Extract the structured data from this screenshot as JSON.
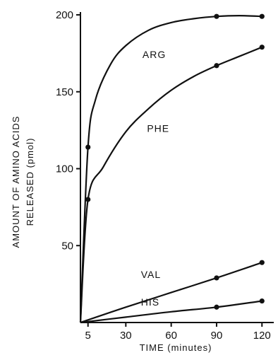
{
  "chart_data": {
    "type": "line",
    "xlabel": "TIME (minutes)",
    "ylabel_line1": "AMOUNT OF AMINO ACIDS",
    "ylabel_line2": "RELEASED (pmol)",
    "xlim": [
      0,
      125
    ],
    "ylim": [
      0,
      200
    ],
    "x_ticks": [
      5,
      30,
      60,
      90,
      120
    ],
    "y_ticks": [
      50,
      100,
      150,
      200
    ],
    "grid": false,
    "series": [
      {
        "name": "ARG",
        "points": [
          [
            0,
            0
          ],
          [
            5,
            114
          ],
          [
            90,
            199
          ],
          [
            120,
            199
          ]
        ],
        "curve": [
          [
            0,
            0
          ],
          [
            5,
            114
          ],
          [
            10,
            145
          ],
          [
            20,
            168
          ],
          [
            30,
            180
          ],
          [
            45,
            190
          ],
          [
            60,
            195
          ],
          [
            75,
            197.5
          ],
          [
            90,
            199
          ],
          [
            105,
            199.5
          ],
          [
            120,
            199
          ]
        ],
        "label_at": [
          41,
          172
        ]
      },
      {
        "name": "PHE",
        "points": [
          [
            0,
            0
          ],
          [
            5,
            80
          ],
          [
            90,
            167
          ],
          [
            120,
            179
          ]
        ],
        "curve": [
          [
            0,
            0
          ],
          [
            5,
            80
          ],
          [
            15,
            101
          ],
          [
            30,
            124
          ],
          [
            45,
            139
          ],
          [
            60,
            151
          ],
          [
            75,
            160
          ],
          [
            90,
            167
          ],
          [
            105,
            173
          ],
          [
            120,
            179
          ]
        ],
        "label_at": [
          44,
          124
        ]
      },
      {
        "name": "VAL",
        "points": [
          [
            0,
            0
          ],
          [
            90,
            29
          ],
          [
            120,
            39
          ]
        ],
        "curve": [
          [
            0,
            0
          ],
          [
            30,
            10
          ],
          [
            60,
            19.5
          ],
          [
            90,
            29
          ],
          [
            120,
            39
          ]
        ],
        "label_at": [
          40,
          29
        ]
      },
      {
        "name": "HIS",
        "points": [
          [
            0,
            0
          ],
          [
            90,
            10
          ],
          [
            120,
            14
          ]
        ],
        "curve": [
          [
            0,
            0
          ],
          [
            30,
            3.5
          ],
          [
            60,
            7
          ],
          [
            90,
            10
          ],
          [
            120,
            14
          ]
        ],
        "label_at": [
          40,
          11
        ]
      }
    ]
  }
}
